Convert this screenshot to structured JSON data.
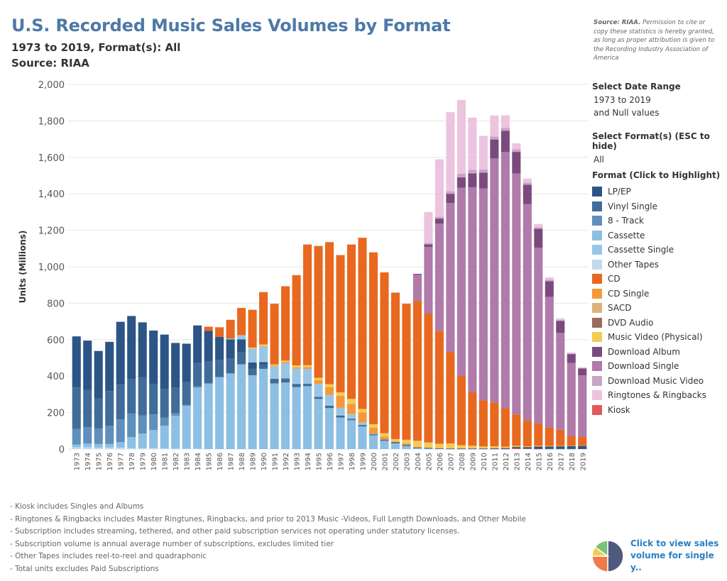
{
  "header": {
    "title": "U.S. Recorded Music Sales Volumes by Format",
    "subtitle": "1973 to 2019, Format(s): All",
    "source": "Source: RIAA",
    "note_bold": "Source: RIAA.",
    "note_text": " Permission to cite or copy these statistics is hereby granted, as long as proper attribution is given to the Recording Industry Association of America"
  },
  "filters": {
    "date_label": "Select Date Range",
    "date_value_1": "1973 to 2019",
    "date_value_2": "and Null values",
    "format_label": "Select Format(s) (ESC to hide)",
    "format_value": "All"
  },
  "legend": {
    "title": "Format (Click to Highlight)",
    "items": [
      {
        "label": "LP/EP",
        "color": "#2c5586"
      },
      {
        "label": "Vinyl Single",
        "color": "#3f6c99"
      },
      {
        "label": "8 - Track",
        "color": "#5f8fbc"
      },
      {
        "label": "Cassette",
        "color": "#8cbfe3"
      },
      {
        "label": "Cassette Single",
        "color": "#99c6e6"
      },
      {
        "label": "Other Tapes",
        "color": "#c0dbef"
      },
      {
        "label": "CD",
        "color": "#e8681f"
      },
      {
        "label": "CD Single",
        "color": "#f3993b"
      },
      {
        "label": "SACD",
        "color": "#e0b07a"
      },
      {
        "label": "DVD Audio",
        "color": "#9a6a5a"
      },
      {
        "label": "Music Video (Physical)",
        "color": "#f2cb55"
      },
      {
        "label": "Download Album",
        "color": "#7a4a7e"
      },
      {
        "label": "Download Single",
        "color": "#b07aaa"
      },
      {
        "label": "Download Music Video",
        "color": "#c9a3c4"
      },
      {
        "label": "Ringtones & Ringbacks",
        "color": "#ecc4df"
      },
      {
        "label": "Kiosk",
        "color": "#e05a5a"
      }
    ]
  },
  "footnotes": [
    "- Kiosk includes Singles and Albums",
    "- Ringtones & Ringbacks includes Master Ringtunes, Ringbacks, and prior to 2013 Music -Videos, Full Length Downloads, and Other Mobile",
    "- Subscription includes streaming, tethered, and other paid subscription services not operating under statutory licenses.",
    "- Subscription volume is annual average number of subscriptions, excludes limited tier",
    "- Other Tapes includes reel-to-reel and quadraphonic",
    "- Total units excludes Paid Subscriptions"
  ],
  "pie_link": {
    "text": "Click to view sales volume for single y..",
    "colors": [
      "#4e5a7e",
      "#f07a4a",
      "#f2cb55",
      "#7cc07a"
    ]
  },
  "chart_data": {
    "type": "bar",
    "stacked": true,
    "ylabel": "Units (Millions)",
    "ylim": [
      0,
      2000
    ],
    "yticks": [
      0,
      200,
      400,
      600,
      800,
      1000,
      1200,
      1400,
      1600,
      1800,
      2000
    ],
    "ytick_labels": [
      "0",
      "200",
      "400",
      "600",
      "800",
      "1,000",
      "1,200",
      "1,400",
      "1,600",
      "1,800",
      "2,000"
    ],
    "grid": true,
    "legend_position": "right",
    "categories": [
      "1973",
      "1974",
      "1975",
      "1976",
      "1977",
      "1978",
      "1979",
      "1980",
      "1981",
      "1982",
      "1983",
      "1984",
      "1985",
      "1986",
      "1987",
      "1988",
      "1989",
      "1990",
      "1991",
      "1992",
      "1993",
      "1994",
      "1995",
      "1996",
      "1997",
      "1998",
      "1999",
      "2000",
      "2001",
      "2002",
      "2003",
      "2004",
      "2005",
      "2006",
      "2007",
      "2008",
      "2009",
      "2010",
      "2011",
      "2012",
      "2013",
      "2014",
      "2015",
      "2016",
      "2017",
      "2018",
      "2019"
    ],
    "series": [
      {
        "name": "Kiosk",
        "color": "#e05a5a",
        "values": [
          0,
          0,
          0,
          0,
          0,
          0,
          0,
          0,
          0,
          0,
          0,
          0,
          0,
          0,
          0,
          0,
          0,
          0,
          0,
          0,
          0,
          0,
          0,
          0,
          0,
          0,
          0,
          0,
          0,
          0,
          0,
          0,
          0,
          0,
          0,
          0,
          0,
          0,
          0,
          0,
          5,
          2,
          1,
          0,
          0,
          0,
          0
        ]
      },
      {
        "name": "Other Tapes",
        "color": "#c0dbef",
        "values": [
          10,
          10,
          8,
          8,
          8,
          5,
          5,
          5,
          3,
          2,
          2,
          2,
          0,
          0,
          0,
          0,
          0,
          0,
          0,
          0,
          0,
          0,
          0,
          0,
          0,
          0,
          0,
          0,
          0,
          0,
          0,
          0,
          0,
          0,
          0,
          0,
          0,
          0,
          0,
          0,
          0,
          0,
          0,
          0,
          0,
          0,
          0
        ]
      },
      {
        "name": "Cassette",
        "color": "#8cbfe3",
        "values": [
          15,
          20,
          20,
          20,
          30,
          60,
          80,
          100,
          125,
          180,
          235,
          335,
          360,
          395,
          415,
          465,
          405,
          440,
          360,
          365,
          340,
          345,
          275,
          225,
          173,
          158,
          124,
          76,
          45,
          31,
          17,
          5,
          2,
          1,
          0,
          0,
          0,
          0,
          0,
          0,
          0,
          0,
          0,
          0,
          0,
          0,
          0
        ]
      },
      {
        "name": "8 - Track",
        "color": "#5f8fbc",
        "values": [
          85,
          90,
          85,
          100,
          125,
          130,
          100,
          85,
          45,
          15,
          6,
          6,
          0,
          0,
          0,
          0,
          0,
          0,
          0,
          0,
          0,
          0,
          0,
          0,
          0,
          0,
          0,
          0,
          0,
          0,
          0,
          0,
          0,
          0,
          0,
          0,
          0,
          0,
          0,
          0,
          0,
          0,
          0,
          0,
          0,
          0,
          0
        ]
      },
      {
        "name": "Vinyl Single",
        "color": "#3f6c99",
        "values": [
          228,
          205,
          165,
          190,
          190,
          190,
          210,
          165,
          155,
          140,
          125,
          130,
          120,
          95,
          80,
          65,
          35,
          25,
          20,
          20,
          15,
          12,
          10,
          10,
          8,
          5,
          5,
          5,
          5,
          4,
          4,
          3,
          3,
          3,
          1,
          1,
          1,
          1,
          1,
          1,
          1,
          1,
          1,
          1,
          1,
          1,
          0
        ]
      },
      {
        "name": "LP/EP",
        "color": "#2c5586",
        "values": [
          280,
          270,
          260,
          270,
          345,
          345,
          300,
          295,
          300,
          245,
          210,
          205,
          168,
          125,
          107,
          72,
          35,
          12,
          5,
          2,
          1,
          2,
          2,
          3,
          3,
          3,
          3,
          2,
          2,
          2,
          2,
          1,
          1,
          1,
          1,
          3,
          3,
          3,
          4,
          5,
          6,
          8,
          12,
          13,
          14,
          16,
          19
        ]
      },
      {
        "name": "Cassette Single",
        "color": "#99c6e6",
        "values": [
          0,
          0,
          0,
          0,
          0,
          0,
          0,
          0,
          0,
          0,
          0,
          0,
          0,
          0,
          5,
          22,
          76,
          87,
          69,
          84,
          85,
          81,
          70,
          59,
          42,
          26,
          14,
          1,
          0,
          0,
          0,
          0,
          0,
          0,
          0,
          0,
          0,
          0,
          0,
          0,
          0,
          0,
          0,
          0,
          0,
          0,
          0
        ]
      },
      {
        "name": "CD Single",
        "color": "#f3993b",
        "values": [
          0,
          0,
          0,
          0,
          0,
          0,
          0,
          0,
          0,
          0,
          0,
          0,
          0,
          0,
          0,
          1,
          0,
          1,
          4,
          7,
          7,
          9,
          21,
          43,
          66,
          56,
          55,
          34,
          17,
          4,
          8,
          3,
          2,
          1,
          2,
          1,
          1,
          1,
          1,
          1,
          1,
          1,
          1,
          1,
          0,
          0,
          0
        ]
      },
      {
        "name": "Music Video (Physical)",
        "color": "#f2cb55",
        "values": [
          0,
          0,
          0,
          0,
          0,
          0,
          0,
          0,
          0,
          0,
          0,
          0,
          0,
          0,
          0,
          0,
          6,
          9,
          6,
          7,
          11,
          11,
          13,
          16,
          19,
          27,
          19,
          18,
          18,
          14,
          20,
          33,
          28,
          23,
          27,
          16,
          13,
          9,
          9,
          6,
          5,
          3,
          3,
          2,
          2,
          1,
          1
        ]
      },
      {
        "name": "SACD",
        "color": "#e0b07a",
        "values": [
          0,
          0,
          0,
          0,
          0,
          0,
          0,
          0,
          0,
          0,
          0,
          0,
          0,
          0,
          0,
          0,
          0,
          0,
          0,
          0,
          0,
          0,
          0,
          0,
          0,
          0,
          0,
          0,
          0,
          0,
          0,
          1,
          1,
          0,
          0,
          0,
          0,
          0,
          0,
          0,
          0,
          0,
          0,
          0,
          0,
          0,
          0
        ]
      },
      {
        "name": "DVD Audio",
        "color": "#9a6a5a",
        "values": [
          0,
          0,
          0,
          0,
          0,
          0,
          0,
          0,
          0,
          0,
          0,
          0,
          0,
          0,
          0,
          0,
          0,
          0,
          0,
          0,
          0,
          0,
          0,
          0,
          0,
          0,
          0,
          0,
          0,
          0,
          0,
          0,
          1,
          0,
          0,
          0,
          0,
          0,
          0,
          0,
          0,
          0,
          0,
          0,
          0,
          0,
          0
        ]
      },
      {
        "name": "CD",
        "color": "#e8681f",
        "values": [
          0,
          0,
          0,
          0,
          0,
          0,
          0,
          0,
          0,
          0,
          0,
          0,
          23,
          53,
          102,
          149,
          207,
          287,
          333,
          408,
          495,
          662,
          723,
          779,
          753,
          847,
          939,
          943,
          882,
          803,
          746,
          767,
          705,
          620,
          500,
          380,
          294,
          253,
          241,
          211,
          172,
          143,
          122,
          100,
          89,
          52,
          46
        ]
      },
      {
        "name": "Download Single",
        "color": "#b07aaa",
        "values": [
          0,
          0,
          0,
          0,
          0,
          0,
          0,
          0,
          0,
          0,
          0,
          0,
          0,
          0,
          0,
          0,
          0,
          0,
          0,
          0,
          0,
          0,
          0,
          0,
          0,
          0,
          0,
          0,
          0,
          0,
          0,
          143,
          366,
          587,
          819,
          1033,
          1124,
          1163,
          1338,
          1405,
          1322,
          1186,
          965,
          718,
          532,
          402,
          338
        ]
      },
      {
        "name": "Download Album",
        "color": "#7a4a7e",
        "values": [
          0,
          0,
          0,
          0,
          0,
          0,
          0,
          0,
          0,
          0,
          0,
          0,
          0,
          0,
          0,
          0,
          0,
          0,
          0,
          0,
          0,
          0,
          0,
          0,
          0,
          0,
          0,
          0,
          0,
          0,
          0,
          5,
          14,
          28,
          50,
          56,
          76,
          86,
          104,
          117,
          118,
          106,
          103,
          86,
          65,
          49,
          38
        ]
      },
      {
        "name": "Download Music Video",
        "color": "#c9a3c4",
        "values": [
          0,
          0,
          0,
          0,
          0,
          0,
          0,
          0,
          0,
          0,
          0,
          0,
          0,
          0,
          0,
          0,
          0,
          0,
          0,
          0,
          0,
          0,
          0,
          0,
          0,
          0,
          0,
          0,
          0,
          0,
          0,
          0,
          7,
          10,
          14,
          20,
          20,
          18,
          17,
          16,
          14,
          12,
          9,
          7,
          5,
          3,
          2
        ]
      },
      {
        "name": "Ringtones & Ringbacks",
        "color": "#ecc4df",
        "values": [
          0,
          0,
          0,
          0,
          0,
          0,
          0,
          0,
          0,
          0,
          0,
          0,
          0,
          0,
          0,
          0,
          0,
          0,
          0,
          0,
          0,
          0,
          0,
          0,
          0,
          0,
          0,
          0,
          0,
          0,
          0,
          0,
          170,
          315,
          434,
          405,
          286,
          184,
          115,
          69,
          33,
          22,
          18,
          14,
          9,
          6,
          5
        ]
      }
    ]
  }
}
